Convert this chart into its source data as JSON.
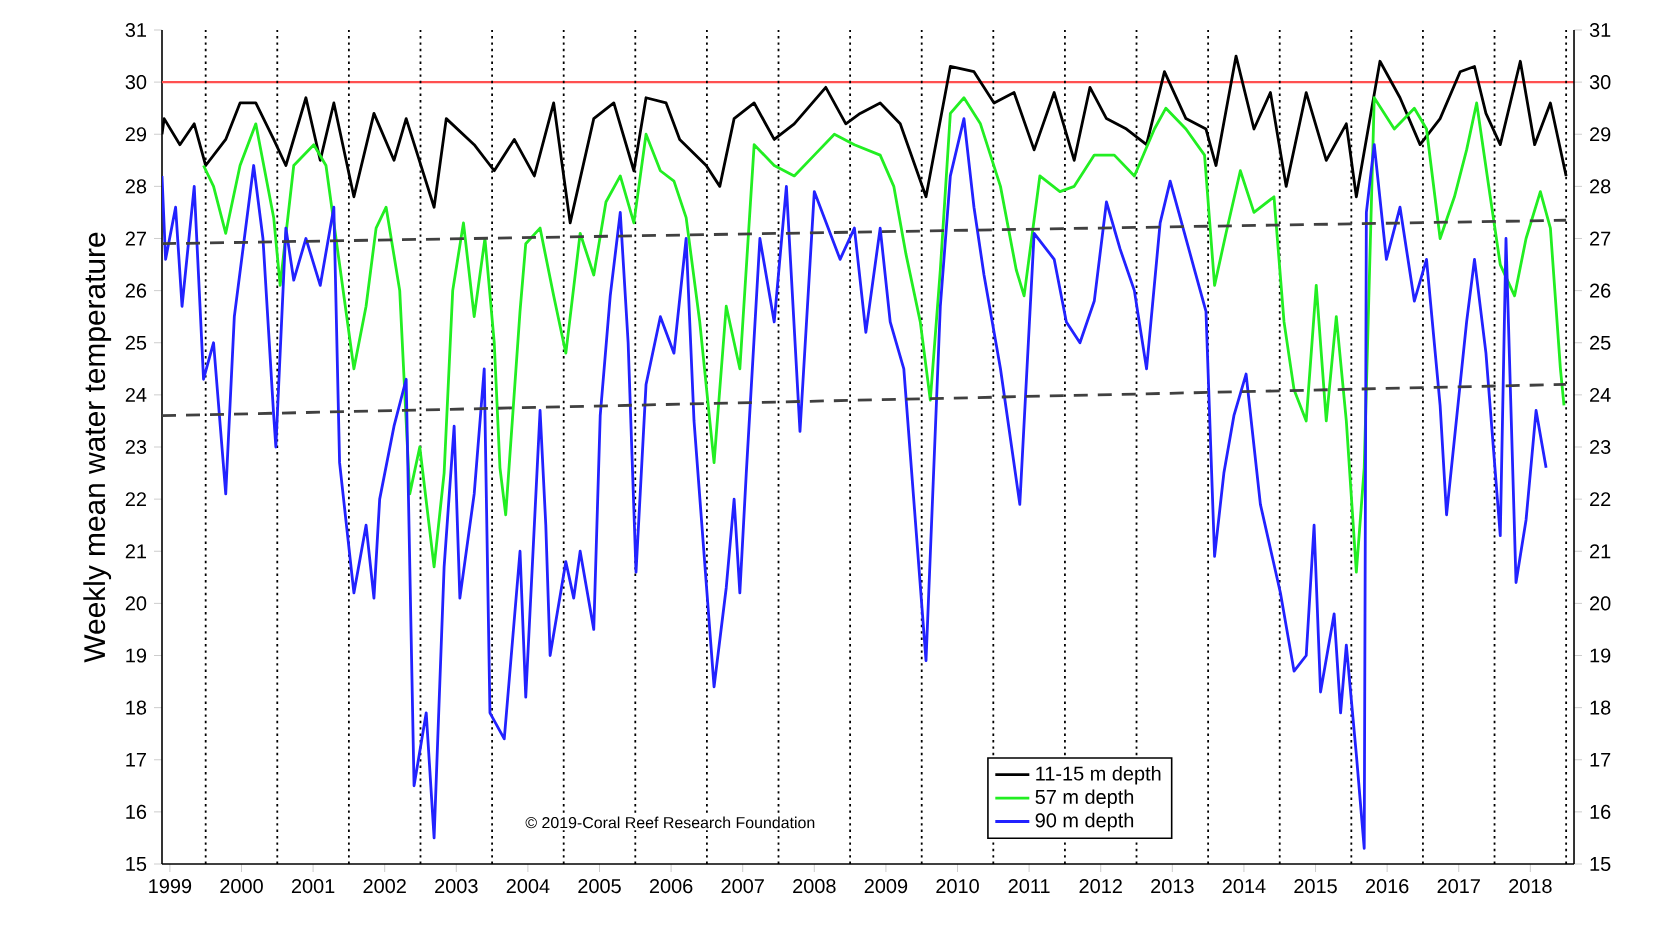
{
  "chart_data": {
    "type": "line",
    "ylabel": "Weekly mean water temperature",
    "annotations": [
      "© 2019-Coral Reef Research Foundation"
    ],
    "xlim": [
      1998.89,
      2018.61
    ],
    "xticks": [
      1999,
      2000,
      2001,
      2002,
      2003,
      2004,
      2005,
      2006,
      2007,
      2008,
      2009,
      2010,
      2011,
      2012,
      2013,
      2014,
      2015,
      2016,
      2017,
      2018
    ],
    "ylim": [
      15,
      31
    ],
    "yticks": [
      15,
      16,
      17,
      18,
      19,
      20,
      21,
      22,
      23,
      24,
      25,
      26,
      27,
      28,
      29,
      30,
      31
    ],
    "y2lim": [
      15,
      31
    ],
    "y2ticks": [
      15,
      16,
      17,
      18,
      19,
      20,
      21,
      22,
      23,
      24,
      25,
      26,
      27,
      28,
      29,
      30,
      31
    ],
    "legend": "bottom",
    "series": [
      {
        "name": "11-15 m depth",
        "color": "#000000",
        "x": [
          1998.89,
          1998.92,
          1999.14,
          1999.34,
          1999.5,
          1999.78,
          1999.98,
          2000.2,
          2000.45,
          2000.62,
          2000.9,
          2001.1,
          2001.29,
          2001.57,
          2001.85,
          2002.13,
          2002.3,
          2002.69,
          2002.86,
          2003.25,
          2003.53,
          2003.81,
          2004.09,
          2004.36,
          2004.59,
          2004.92,
          2005.2,
          2005.48,
          2005.65,
          2005.93,
          2006.12,
          2006.49,
          2006.68,
          2006.88,
          2007.16,
          2007.44,
          2007.72,
          2008.16,
          2008.44,
          2008.64,
          2008.92,
          2009.2,
          2009.56,
          2009.9,
          2010.23,
          2010.51,
          2010.79,
          2011.07,
          2011.35,
          2011.63,
          2011.85,
          2012.08,
          2012.36,
          2012.64,
          2012.89,
          2013.19,
          2013.47,
          2013.61,
          2013.89,
          2014.14,
          2014.37,
          2014.59,
          2014.87,
          2015.15,
          2015.43,
          2015.57,
          2015.9,
          2016.18,
          2016.46,
          2016.74,
          2017.02,
          2017.22,
          2017.38,
          2017.58,
          2017.86,
          2018.06,
          2018.28,
          2018.5
        ],
        "values": [
          29.0,
          29.3,
          28.8,
          29.2,
          28.4,
          28.9,
          29.6,
          29.6,
          28.9,
          28.4,
          29.7,
          28.5,
          29.6,
          27.8,
          29.4,
          28.5,
          29.3,
          27.6,
          29.3,
          28.8,
          28.3,
          28.9,
          28.2,
          29.6,
          27.3,
          29.3,
          29.6,
          28.3,
          29.7,
          29.6,
          28.9,
          28.4,
          28.0,
          29.3,
          29.6,
          28.9,
          29.2,
          29.9,
          29.2,
          29.4,
          29.6,
          29.2,
          27.8,
          30.3,
          30.2,
          29.6,
          29.8,
          28.7,
          29.8,
          28.5,
          29.9,
          29.3,
          29.1,
          28.8,
          30.2,
          29.3,
          29.1,
          28.4,
          30.5,
          29.1,
          29.8,
          28.0,
          29.8,
          28.5,
          29.2,
          27.8,
          30.4,
          29.7,
          28.8,
          29.3,
          30.2,
          30.3,
          29.4,
          28.8,
          30.4,
          28.8,
          29.6,
          28.2
        ]
      },
      {
        "name": "57 m depth",
        "color": "#22ee22",
        "x": [
          1999.47,
          1999.61,
          1999.78,
          1999.98,
          2000.2,
          2000.45,
          2000.54,
          2000.73,
          2001.01,
          2001.18,
          2001.37,
          2001.57,
          2001.74,
          2001.88,
          2002.02,
          2002.21,
          2002.35,
          2002.49,
          2002.69,
          2002.83,
          2002.95,
          2003.1,
          2003.25,
          2003.4,
          2003.53,
          2003.61,
          2003.69,
          2003.89,
          2003.97,
          2004.17,
          2004.36,
          2004.53,
          2004.73,
          2004.92,
          2005.09,
          2005.29,
          2005.48,
          2005.65,
          2005.85,
          2006.04,
          2006.21,
          2006.4,
          2006.6,
          2006.77,
          2006.96,
          2007.16,
          2007.44,
          2007.72,
          2008.0,
          2008.28,
          2008.56,
          2008.92,
          2009.11,
          2009.28,
          2009.48,
          2009.62,
          2009.76,
          2009.9,
          2010.09,
          2010.32,
          2010.6,
          2010.82,
          2010.93,
          2011.15,
          2011.43,
          2011.63,
          2011.91,
          2012.19,
          2012.47,
          2012.75,
          2012.91,
          2013.19,
          2013.45,
          2013.59,
          2013.75,
          2013.95,
          2014.14,
          2014.42,
          2014.56,
          2014.7,
          2014.87,
          2015.01,
          2015.15,
          2015.29,
          2015.43,
          2015.57,
          2015.68,
          2015.82,
          2016.1,
          2016.38,
          2016.55,
          2016.74,
          2016.94,
          2017.11,
          2017.25,
          2017.44,
          2017.58,
          2017.78,
          2017.94,
          2018.14,
          2018.28,
          2018.42,
          2018.47
        ],
        "values": [
          28.4,
          28.0,
          27.1,
          28.4,
          29.2,
          27.4,
          26.1,
          28.4,
          28.8,
          28.4,
          26.5,
          24.5,
          25.7,
          27.2,
          27.6,
          26.0,
          22.1,
          23.0,
          20.7,
          22.5,
          26.0,
          27.3,
          25.5,
          27.0,
          25.0,
          22.6,
          21.7,
          25.6,
          26.9,
          27.2,
          25.9,
          24.8,
          27.1,
          26.3,
          27.7,
          28.2,
          27.3,
          29.0,
          28.3,
          28.1,
          27.4,
          25.4,
          22.7,
          25.7,
          24.5,
          28.8,
          28.4,
          28.2,
          28.6,
          29.0,
          28.8,
          28.6,
          28.0,
          26.7,
          25.4,
          23.9,
          26.4,
          29.4,
          29.7,
          29.2,
          28.0,
          26.4,
          25.9,
          28.2,
          27.9,
          28.0,
          28.6,
          28.6,
          28.2,
          29.1,
          29.5,
          29.1,
          28.6,
          26.1,
          27.1,
          28.3,
          27.5,
          27.8,
          25.4,
          24.1,
          23.5,
          26.1,
          23.5,
          25.5,
          23.5,
          20.6,
          22.6,
          29.7,
          29.1,
          29.5,
          29.1,
          27.0,
          27.8,
          28.7,
          29.6,
          27.8,
          26.5,
          25.9,
          27.0,
          27.9,
          27.2,
          24.5,
          23.8
        ]
      },
      {
        "name": "90 m depth",
        "color": "#2222ff",
        "x": [
          1998.89,
          1998.94,
          1999.08,
          1999.17,
          1999.34,
          1999.47,
          1999.61,
          1999.78,
          1999.9,
          2000.17,
          2000.3,
          2000.45,
          2000.48,
          2000.62,
          2000.73,
          2000.9,
          2001.1,
          2001.29,
          2001.37,
          2001.57,
          2001.74,
          2001.85,
          2001.93,
          2002.13,
          2002.3,
          2002.41,
          2002.58,
          2002.69,
          2002.83,
          2002.97,
          2003.05,
          2003.25,
          2003.39,
          2003.47,
          2003.67,
          2003.89,
          2003.97,
          2004.17,
          2004.25,
          2004.31,
          2004.53,
          2004.64,
          2004.73,
          2004.92,
          2005.01,
          2005.15,
          2005.29,
          2005.4,
          2005.51,
          2005.65,
          2005.85,
          2006.04,
          2006.21,
          2006.32,
          2006.6,
          2006.77,
          2006.88,
          2006.96,
          2007.05,
          2007.24,
          2007.44,
          2007.61,
          2007.8,
          2008.0,
          2008.36,
          2008.56,
          2008.72,
          2008.92,
          2009.06,
          2009.25,
          2009.56,
          2009.76,
          2009.9,
          2010.09,
          2010.23,
          2010.37,
          2010.6,
          2010.87,
          2011.07,
          2011.35,
          2011.52,
          2011.71,
          2011.91,
          2012.08,
          2012.27,
          2012.47,
          2012.64,
          2012.83,
          2012.97,
          2013.11,
          2013.31,
          2013.47,
          2013.59,
          2013.72,
          2013.86,
          2014.03,
          2014.23,
          2014.51,
          2014.7,
          2014.87,
          2014.98,
          2015.07,
          2015.26,
          2015.35,
          2015.43,
          2015.57,
          2015.68,
          2015.71,
          2015.82,
          2015.99,
          2016.18,
          2016.38,
          2016.55,
          2016.74,
          2016.83,
          2017.11,
          2017.22,
          2017.38,
          2017.58,
          2017.66,
          2017.8,
          2017.94,
          2018.08,
          2018.22
        ],
        "values": [
          28.2,
          26.6,
          27.6,
          25.7,
          28.0,
          24.3,
          25.0,
          22.1,
          25.5,
          28.4,
          27.0,
          23.6,
          23.0,
          27.2,
          26.2,
          27.0,
          26.1,
          27.6,
          22.7,
          20.2,
          21.5,
          20.1,
          22.0,
          23.4,
          24.3,
          16.5,
          17.9,
          15.5,
          20.7,
          23.4,
          20.1,
          22.1,
          24.5,
          17.9,
          17.4,
          21.0,
          18.2,
          23.7,
          21.5,
          19.0,
          20.8,
          20.1,
          21.0,
          19.5,
          23.6,
          25.9,
          27.5,
          25.0,
          20.6,
          24.2,
          25.5,
          24.8,
          27.0,
          23.5,
          18.4,
          20.3,
          22.0,
          20.2,
          22.5,
          27.0,
          25.4,
          28.0,
          23.3,
          27.9,
          26.6,
          27.2,
          25.2,
          27.2,
          25.4,
          24.5,
          18.9,
          25.7,
          28.2,
          29.3,
          27.6,
          26.3,
          24.5,
          21.9,
          27.1,
          26.6,
          25.4,
          25.0,
          25.8,
          27.7,
          26.8,
          26.0,
          24.5,
          27.3,
          28.1,
          27.4,
          26.4,
          25.6,
          20.9,
          22.5,
          23.6,
          24.4,
          21.9,
          20.2,
          18.7,
          19.0,
          21.5,
          18.3,
          19.8,
          17.9,
          19.2,
          17.1,
          15.3,
          27.5,
          28.8,
          26.6,
          27.6,
          25.8,
          26.6,
          23.8,
          21.7,
          25.4,
          26.6,
          24.8,
          21.3,
          27.0,
          20.4,
          21.6,
          23.7,
          22.6
        ]
      },
      {
        "type": "line",
        "line_style": "dashed",
        "color": "#404040",
        "x": [
          1998.89,
          2018.5
        ],
        "values": [
          26.9,
          27.35
        ]
      },
      {
        "type": "line",
        "line_style": "dashed",
        "color": "#404040",
        "x": [
          1998.89,
          2018.5
        ],
        "values": [
          23.6,
          24.2
        ]
      }
    ],
    "ref_lines": [
      {
        "axis": "y",
        "value": 30,
        "color": "#ff5050",
        "line_style": "solid"
      },
      {
        "axis": "x",
        "value": 1999.5,
        "color": "#000000",
        "line_style": "dotted"
      },
      {
        "axis": "x",
        "value": 2000.5,
        "color": "#000000",
        "line_style": "dotted"
      },
      {
        "axis": "x",
        "value": 2001.5,
        "color": "#000000",
        "line_style": "dotted"
      },
      {
        "axis": "x",
        "value": 2002.5,
        "color": "#000000",
        "line_style": "dotted"
      },
      {
        "axis": "x",
        "value": 2003.5,
        "color": "#000000",
        "line_style": "dotted"
      },
      {
        "axis": "x",
        "value": 2004.5,
        "color": "#000000",
        "line_style": "dotted"
      },
      {
        "axis": "x",
        "value": 2005.5,
        "color": "#000000",
        "line_style": "dotted"
      },
      {
        "axis": "x",
        "value": 2006.5,
        "color": "#000000",
        "line_style": "dotted"
      },
      {
        "axis": "x",
        "value": 2007.5,
        "color": "#000000",
        "line_style": "dotted"
      },
      {
        "axis": "x",
        "value": 2008.5,
        "color": "#000000",
        "line_style": "dotted"
      },
      {
        "axis": "x",
        "value": 2009.5,
        "color": "#000000",
        "line_style": "dotted"
      },
      {
        "axis": "x",
        "value": 2010.5,
        "color": "#000000",
        "line_style": "dotted"
      },
      {
        "axis": "x",
        "value": 2011.5,
        "color": "#000000",
        "line_style": "dotted"
      },
      {
        "axis": "x",
        "value": 2012.5,
        "color": "#000000",
        "line_style": "dotted"
      },
      {
        "axis": "x",
        "value": 2013.5,
        "color": "#000000",
        "line_style": "dotted"
      },
      {
        "axis": "x",
        "value": 2014.5,
        "color": "#000000",
        "line_style": "dotted"
      },
      {
        "axis": "x",
        "value": 2015.5,
        "color": "#000000",
        "line_style": "dotted"
      },
      {
        "axis": "x",
        "value": 2016.5,
        "color": "#000000",
        "line_style": "dotted"
      },
      {
        "axis": "x",
        "value": 2017.5,
        "color": "#000000",
        "line_style": "dotted"
      },
      {
        "axis": "x",
        "value": 2018.5,
        "color": "#000000",
        "line_style": "dotted"
      }
    ]
  }
}
